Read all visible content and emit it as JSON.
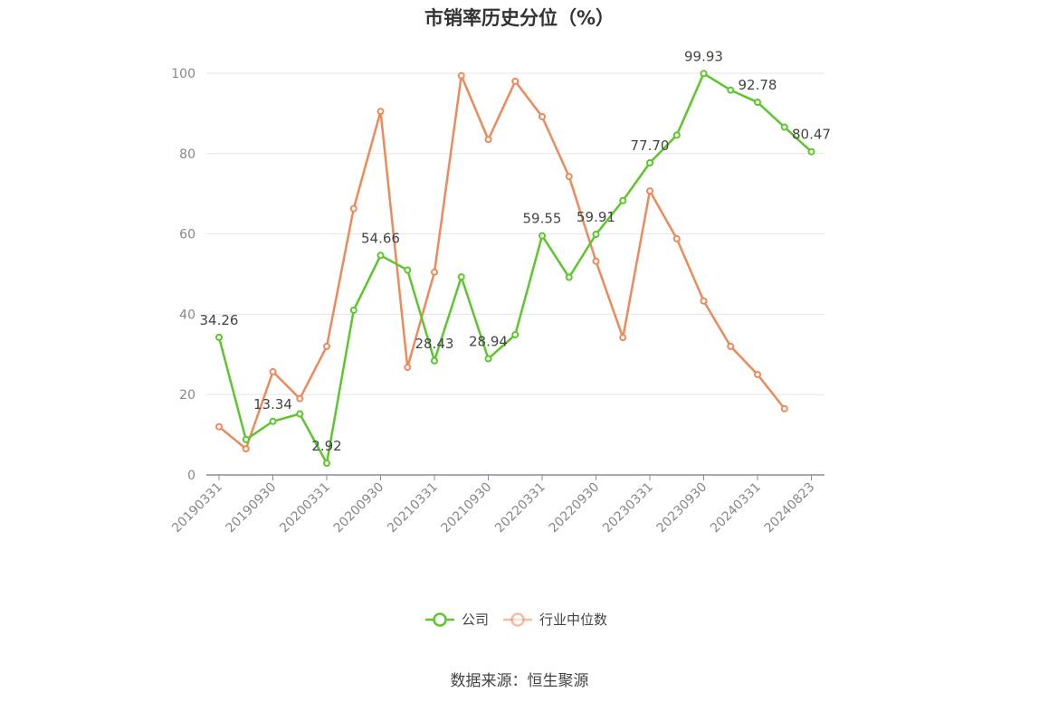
{
  "chart_data": {
    "type": "line",
    "title": "市销率历史分位（%）",
    "x_tick_labels": [
      "20190331",
      "20190930",
      "20200331",
      "20200930",
      "20210331",
      "20210930",
      "20220331",
      "20220930",
      "20230331",
      "20230930",
      "20240331",
      "20240823"
    ],
    "ylim": [
      0,
      100
    ],
    "y_ticks": [
      0,
      20,
      40,
      60,
      80,
      100
    ],
    "grid": true,
    "legend_position": "bottom-center",
    "series": [
      {
        "name": "公司",
        "color": "#5cc72a",
        "values": [
          34.26,
          8.8,
          13.34,
          15.2,
          2.92,
          41.0,
          54.66,
          51.0,
          28.43,
          49.3,
          28.94,
          34.9,
          59.55,
          49.2,
          59.91,
          68.3,
          77.7,
          84.6,
          99.93,
          95.8,
          92.78,
          86.6,
          80.47
        ],
        "data_labels": {
          "0": "34.26",
          "2": "13.34",
          "4": "2.92",
          "6": "54.66",
          "8": "28.43",
          "10": "28.94",
          "12": "59.55",
          "14": "59.91",
          "16": "77.70",
          "18": "99.93",
          "20": "92.78",
          "22": "80.47"
        }
      },
      {
        "name": "行业中位数",
        "color": "#f0895a",
        "values": [
          12.0,
          6.5,
          25.7,
          19.0,
          32.0,
          66.3,
          90.5,
          26.8,
          50.5,
          99.4,
          83.5,
          98.0,
          89.2,
          74.3,
          53.2,
          34.2,
          70.7,
          58.8,
          43.3,
          32.0,
          25.0,
          16.5,
          null
        ]
      }
    ]
  },
  "source_text": "数据来源：恒生聚源"
}
